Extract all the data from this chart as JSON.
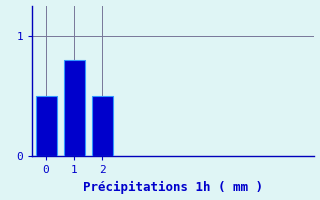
{
  "categories": [
    0,
    1,
    2
  ],
  "values": [
    0.5,
    0.8,
    0.5
  ],
  "bar_color": "#0000cc",
  "bar_edge_color": "#3399ff",
  "background_color": "#dff5f5",
  "text_color": "#0000cc",
  "xlabel": "Précipitations 1h ( mm )",
  "xlabel_fontsize": 9,
  "tick_fontsize": 8,
  "ylim": [
    0,
    1.25
  ],
  "xlim": [
    -0.5,
    9.5
  ],
  "yticks": [
    0,
    1
  ],
  "xticks": [
    0,
    1,
    2
  ],
  "grid_color": "#777799",
  "bar_width": 0.75,
  "spine_color": "#0000bb"
}
